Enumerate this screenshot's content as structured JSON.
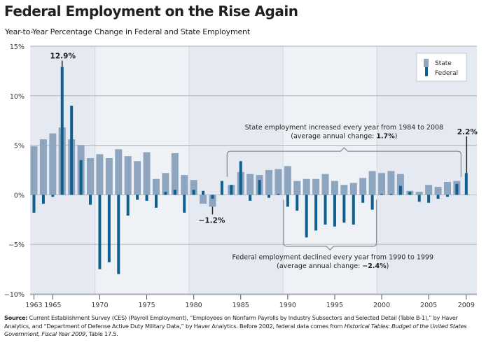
{
  "header": {
    "title": "Federal Employment on the Rise Again",
    "subtitle": "Year-to-Year Percentage Change in Federal and State Employment"
  },
  "source": {
    "label": "Source:",
    "text1": " Current Establishment Survey (CES) (Payroll Employment), “Employees on Nonfarm Payrolls by Industry Subsectors and Selected Detail (Table B-1),” by Haver Analytics, and “Department of Defense Active Duty Military Data,” by Haver Analytics. Before 2002, federal data comes from ",
    "italic1": "Historical Tables: Budget of the United States Government, Fiscal Year 2009",
    "text2": ", Table 17.5."
  },
  "colors": {
    "state": "#8ea5bf",
    "federal": "#0f5f8f",
    "band_dark": "#e5eaf2",
    "band_light": "#eef2f6",
    "gridline": "#b7bcc2"
  },
  "chart_data": {
    "type": "bar",
    "title": "Federal Employment on the Rise Again",
    "subtitle": "Year-to-Year Percentage Change in Federal and State Employment",
    "xlabel": "",
    "ylabel": "",
    "ylim": [
      -10,
      15
    ],
    "yticks": [
      15,
      10,
      5,
      0,
      -5,
      -10
    ],
    "ytick_labels": [
      "15%",
      "10%",
      "5%",
      "0%",
      "−5%",
      "−10%"
    ],
    "xtick_years": [
      1963,
      1965,
      1970,
      1975,
      1980,
      1985,
      1990,
      1995,
      2000,
      2005,
      2009
    ],
    "grid": true,
    "legend": {
      "placement": "top-right",
      "entries": [
        "State",
        "Federal"
      ]
    },
    "categories": [
      1963,
      1964,
      1965,
      1966,
      1967,
      1968,
      1969,
      1970,
      1971,
      1972,
      1973,
      1974,
      1975,
      1976,
      1977,
      1978,
      1979,
      1980,
      1981,
      1982,
      1983,
      1984,
      1985,
      1986,
      1987,
      1988,
      1989,
      1990,
      1991,
      1992,
      1993,
      1994,
      1995,
      1996,
      1997,
      1998,
      1999,
      2000,
      2001,
      2002,
      2003,
      2004,
      2005,
      2006,
      2007,
      2008,
      2009
    ],
    "series": [
      {
        "name": "State",
        "values": [
          4.9,
          5.6,
          6.2,
          6.8,
          5.6,
          5.0,
          3.7,
          4.1,
          3.7,
          4.6,
          3.9,
          3.4,
          4.3,
          1.6,
          2.2,
          4.2,
          2.0,
          1.5,
          -0.9,
          -1.2,
          0.0,
          1.0,
          2.3,
          2.1,
          2.0,
          2.5,
          2.6,
          2.9,
          1.4,
          1.6,
          1.6,
          2.1,
          1.4,
          1.0,
          1.2,
          1.7,
          2.4,
          2.2,
          2.4,
          2.1,
          0.4,
          0.3,
          1.0,
          0.8,
          1.3,
          1.4,
          0.05
        ]
      },
      {
        "name": "Federal",
        "values": [
          -1.8,
          -0.9,
          -0.2,
          12.9,
          9.0,
          3.5,
          -1.0,
          -7.5,
          -6.8,
          -8.0,
          -2.1,
          -0.5,
          -0.6,
          -1.3,
          0.3,
          0.5,
          -1.8,
          0.5,
          0.4,
          -0.4,
          1.4,
          1.0,
          3.4,
          -0.6,
          1.5,
          -0.3,
          0.1,
          -1.2,
          -1.6,
          -4.3,
          -3.6,
          -3.0,
          -3.2,
          -2.8,
          -3.0,
          -0.8,
          -1.5,
          0.1,
          0.1,
          0.9,
          0.3,
          -0.7,
          -0.8,
          -0.4,
          -0.2,
          1.1,
          2.2
        ]
      }
    ],
    "annotations": {
      "peak_label": "12.9%",
      "low_label": "−1.2%",
      "end_label": "2.2%",
      "state_note_line1": "State employment increased every year from 1984 to 2008",
      "state_note_line2_prefix": "(average annual change: ",
      "state_note_value": "1.7%",
      "state_note_line2_suffix": ")",
      "state_range": [
        1984,
        2008
      ],
      "federal_note_line1": "Federal employment declined every year from 1990 to 1999",
      "federal_note_line2_prefix": "(average annual change: ",
      "federal_note_value": "−2.4%",
      "federal_note_line2_suffix": ")",
      "federal_range": [
        1990,
        1999
      ]
    }
  }
}
